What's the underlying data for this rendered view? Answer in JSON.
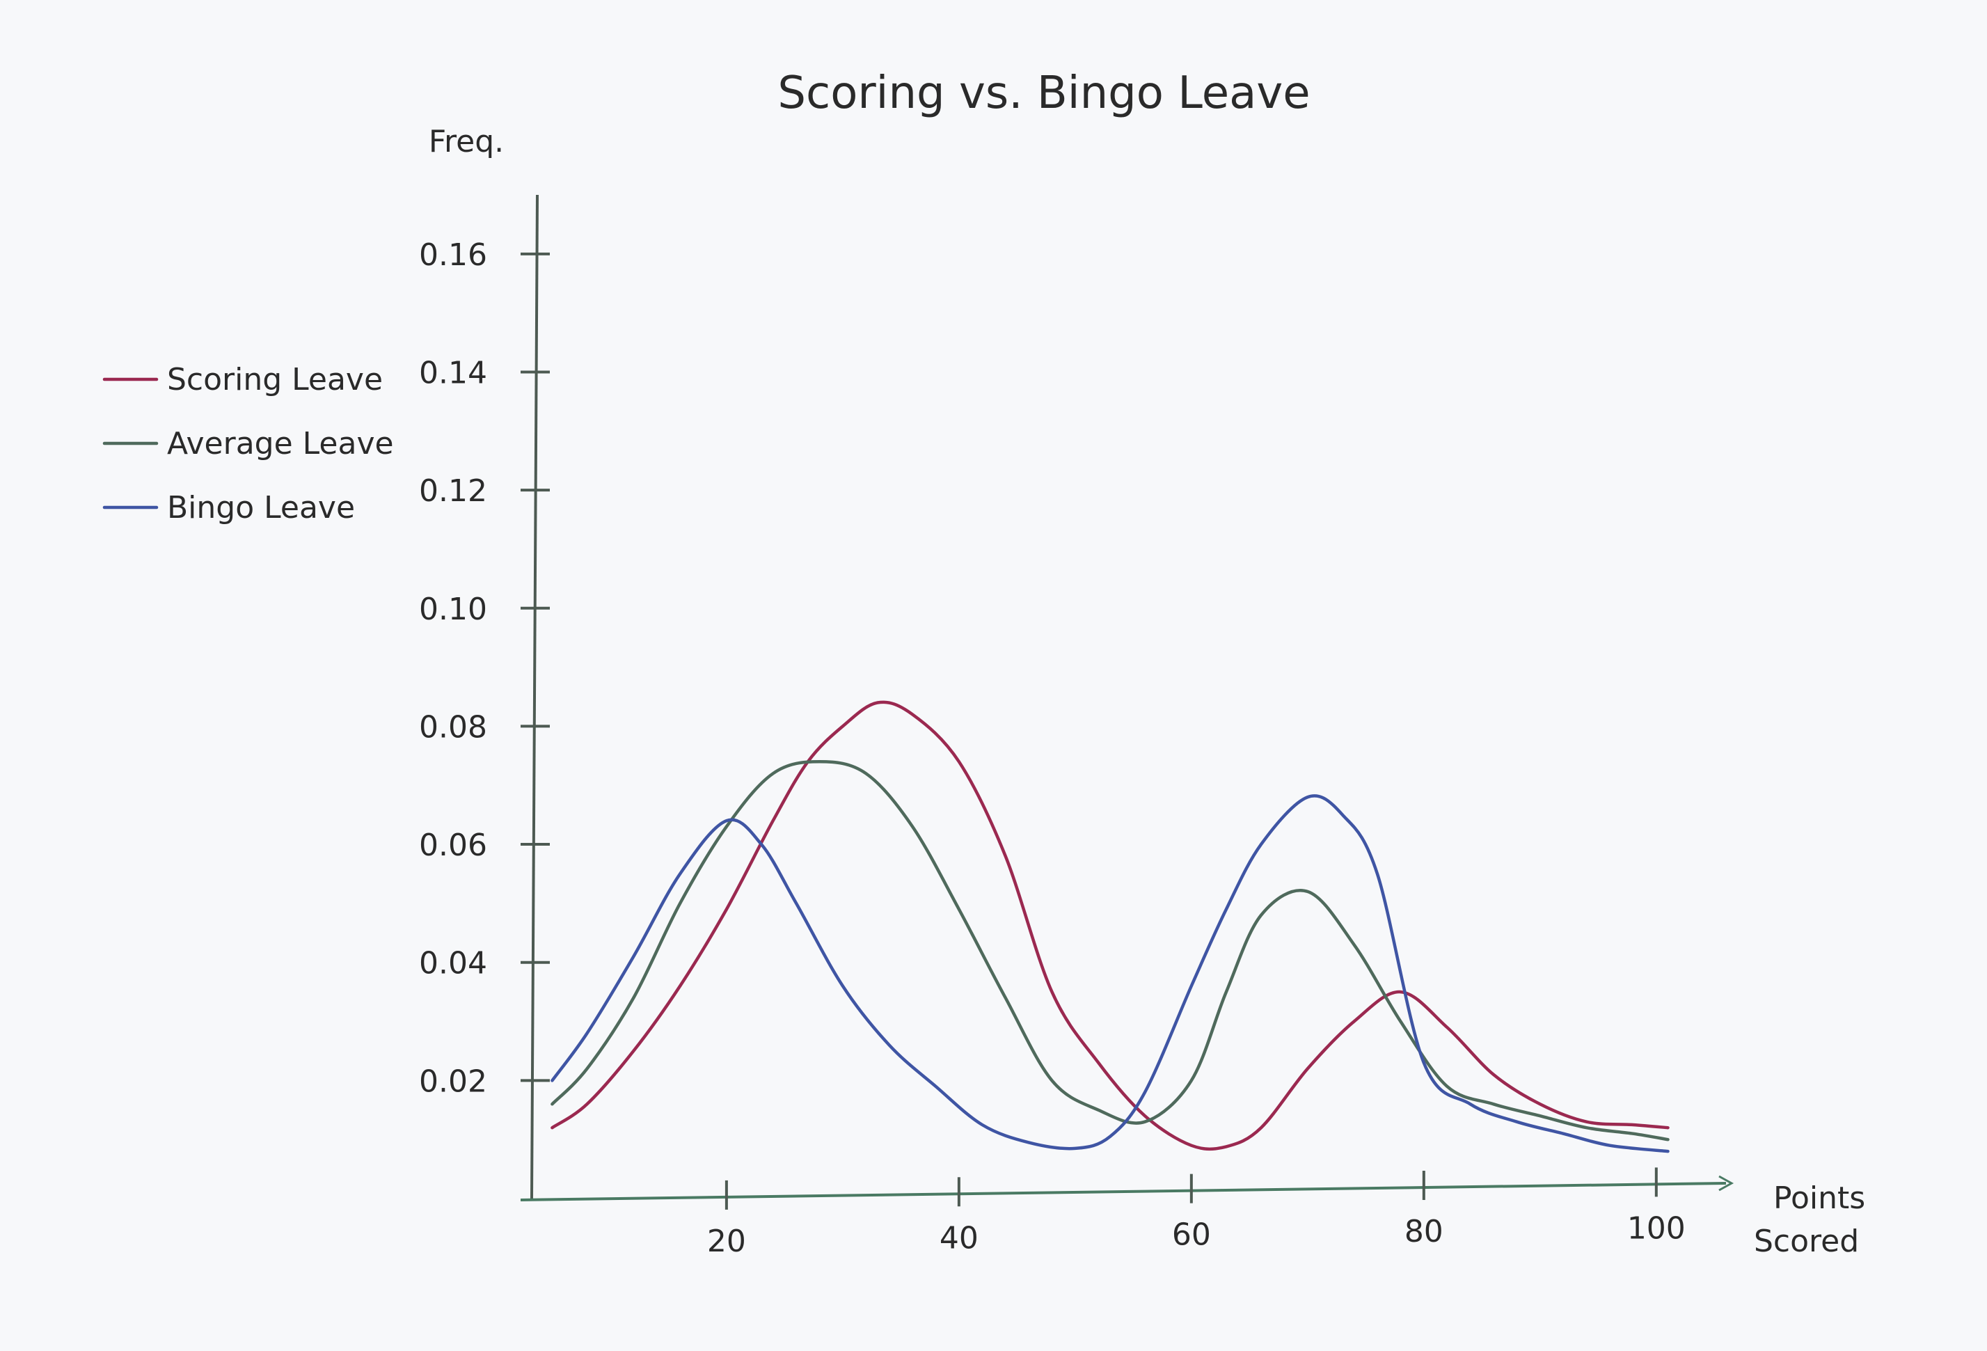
{
  "chart_data": {
    "type": "line",
    "title": "Scoring vs. Bingo Leave",
    "ylabel": "Freq.",
    "xlabel": "Points\nScored",
    "xlabel_lines": [
      "Points",
      "Scored"
    ],
    "xlim": [
      3,
      106
    ],
    "ylim": [
      0,
      0.17
    ],
    "x_ticks": [
      20,
      40,
      60,
      80,
      100
    ],
    "x_tick_labels": [
      "20",
      "40",
      "60",
      "80",
      "100"
    ],
    "y_ticks": [
      0.02,
      0.04,
      0.06,
      0.08,
      0.1,
      0.12,
      0.14,
      0.16
    ],
    "y_tick_labels": [
      "0.02",
      "0.04",
      "0.06",
      "0.08",
      "0.10",
      "0.12",
      "0.14",
      "0.16"
    ],
    "grid": false,
    "legend_position": "left",
    "series": [
      {
        "name": "Scoring Leave",
        "color": "#9b2950",
        "x": [
          5,
          8,
          12,
          16,
          20,
          24,
          27,
          30,
          33,
          36,
          40,
          44,
          48,
          52,
          56,
          60,
          63,
          66,
          70,
          74,
          78,
          82,
          86,
          90,
          94,
          98,
          101
        ],
        "y": [
          0.012,
          0.016,
          0.025,
          0.036,
          0.049,
          0.064,
          0.074,
          0.08,
          0.084,
          0.082,
          0.074,
          0.058,
          0.035,
          0.023,
          0.014,
          0.009,
          0.0088,
          0.012,
          0.022,
          0.03,
          0.035,
          0.029,
          0.021,
          0.016,
          0.013,
          0.0125,
          0.012
        ]
      },
      {
        "name": "Average Leave",
        "color": "#4f6a5c",
        "x": [
          5,
          8,
          12,
          16,
          20,
          24,
          28,
          32,
          36,
          40,
          44,
          48,
          52,
          56,
          60,
          63,
          66,
          70,
          74,
          78,
          82,
          86,
          90,
          94,
          98,
          101
        ],
        "y": [
          0.016,
          0.022,
          0.034,
          0.05,
          0.063,
          0.072,
          0.074,
          0.072,
          0.063,
          0.049,
          0.034,
          0.02,
          0.015,
          0.013,
          0.02,
          0.035,
          0.048,
          0.052,
          0.043,
          0.03,
          0.019,
          0.016,
          0.014,
          0.012,
          0.011,
          0.01
        ]
      },
      {
        "name": "Bingo Leave",
        "color": "#3f55a4",
        "x": [
          5,
          8,
          12,
          16,
          20,
          23,
          26,
          30,
          34,
          38,
          42,
          46,
          50,
          53,
          56,
          60,
          63,
          66,
          70,
          73,
          76,
          80,
          84,
          88,
          92,
          96,
          101
        ],
        "y": [
          0.02,
          0.028,
          0.041,
          0.055,
          0.064,
          0.06,
          0.05,
          0.036,
          0.026,
          0.019,
          0.0125,
          0.0095,
          0.0085,
          0.0105,
          0.018,
          0.036,
          0.049,
          0.06,
          0.068,
          0.065,
          0.055,
          0.023,
          0.016,
          0.013,
          0.011,
          0.009,
          0.008
        ]
      }
    ]
  }
}
